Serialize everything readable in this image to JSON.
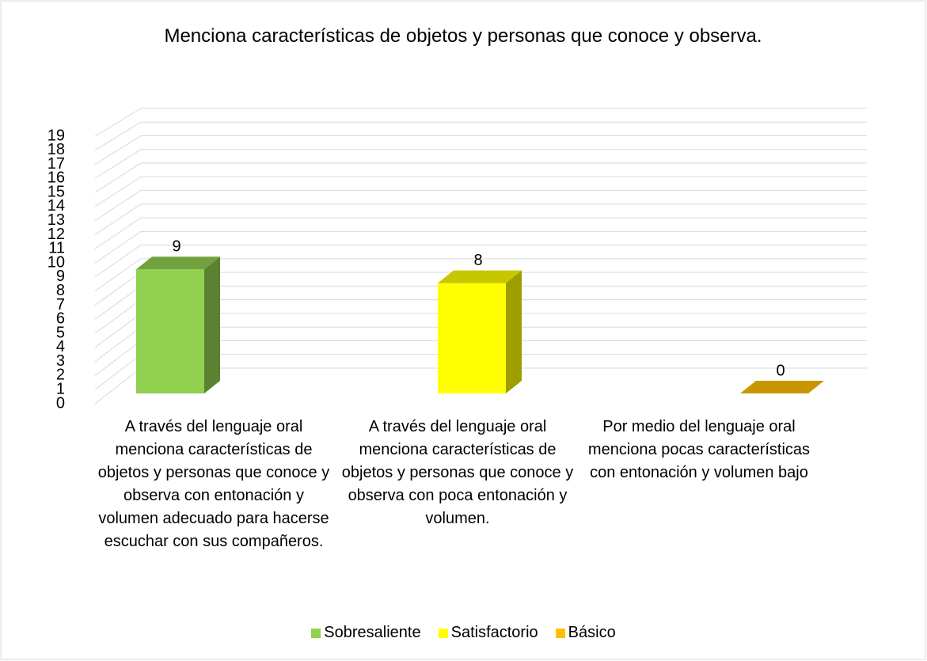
{
  "chart_data": {
    "type": "bar3d",
    "title": "Menciona características de objetos y personas que conoce y observa.",
    "categories": [
      "A través del lenguaje oral menciona características de objetos y personas que conoce y observa con entonación y volumen adecuado para hacerse escuchar con sus compañeros.",
      "A través del lenguaje oral menciona características de objetos y personas que conoce y observa con poca entonación y volumen.",
      "Por medio del lenguaje oral menciona pocas características con entonación y volumen bajo"
    ],
    "series": [
      {
        "name": "Sobresaliente",
        "color": "#92d050",
        "values": [
          9,
          null,
          null
        ]
      },
      {
        "name": "Satisfactorio",
        "color": "#ffff00",
        "values": [
          null,
          8,
          null
        ]
      },
      {
        "name": "Básico",
        "color": "#ffc000",
        "values": [
          null,
          null,
          0
        ]
      }
    ],
    "ylim": [
      0,
      19
    ],
    "yticks": [
      0,
      1,
      2,
      3,
      4,
      5,
      6,
      7,
      8,
      9,
      10,
      11,
      12,
      13,
      14,
      15,
      16,
      17,
      18,
      19
    ],
    "grid": true,
    "legend": "bottom"
  }
}
